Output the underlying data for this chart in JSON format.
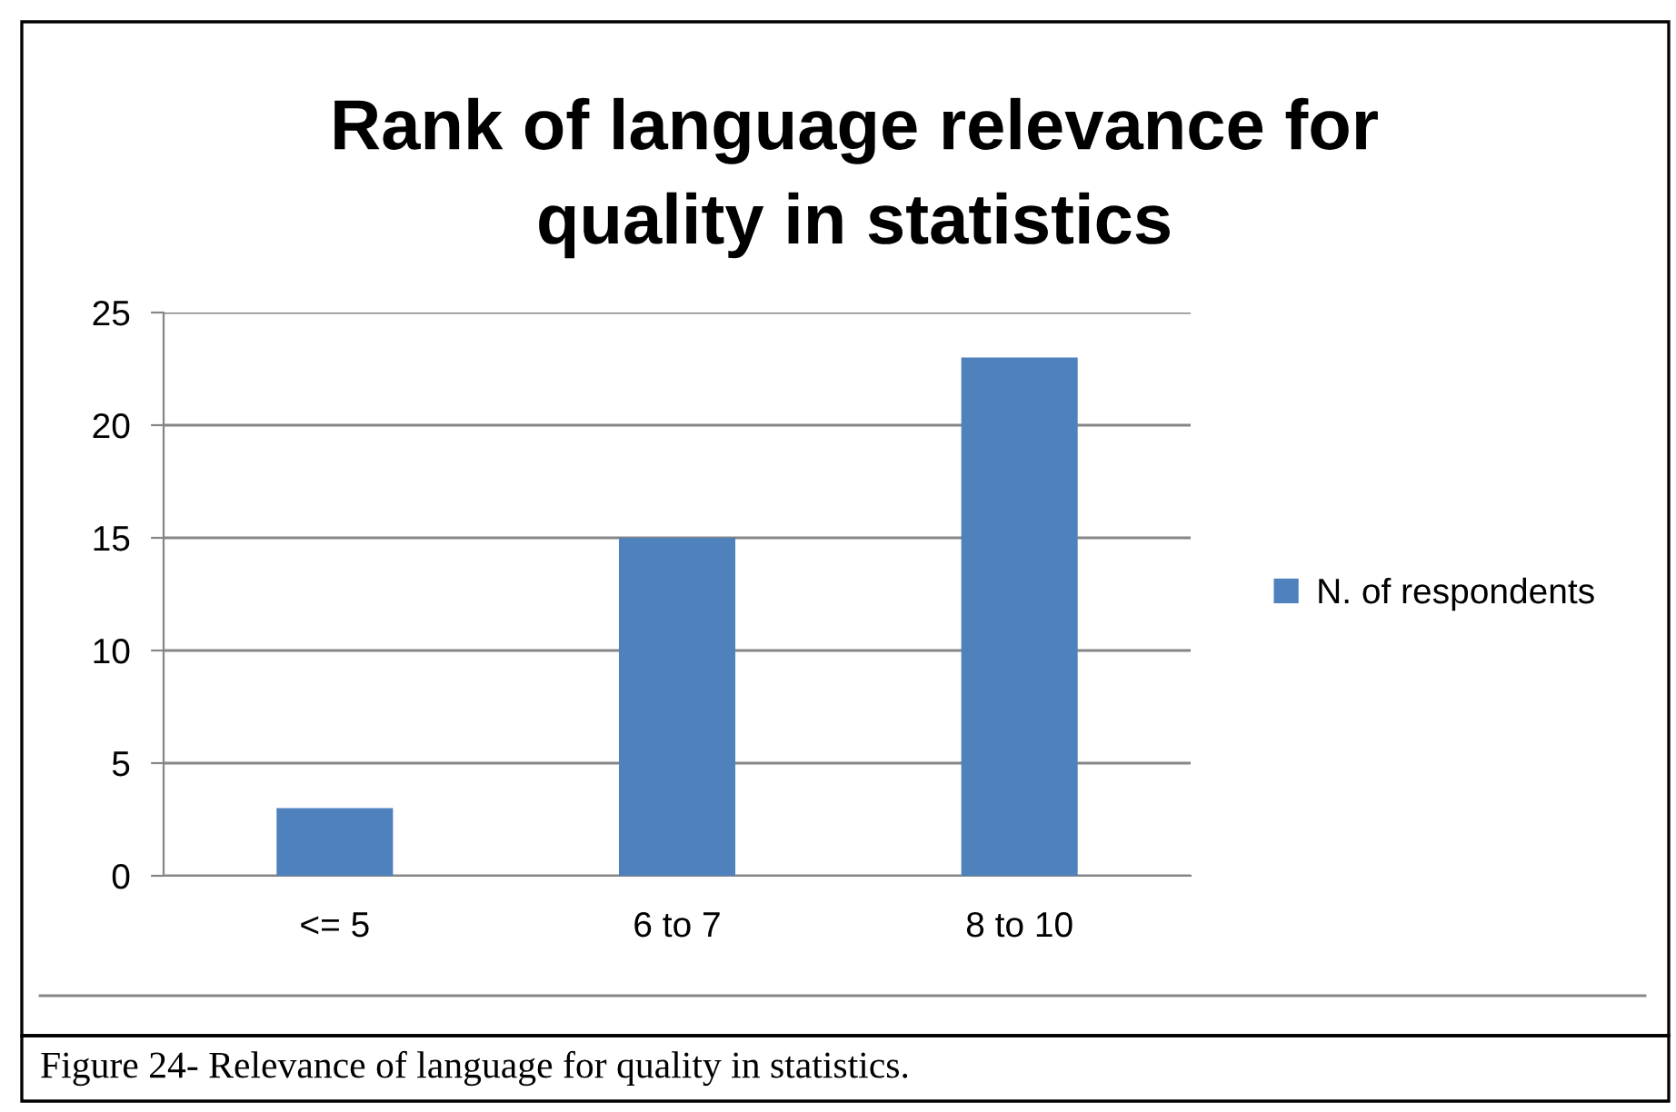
{
  "chart_data": {
    "type": "bar",
    "title": "Rank of language relevance for\nquality in statistics",
    "categories": [
      "<= 5",
      "6 to 7",
      "8 to 10"
    ],
    "series": [
      {
        "name": "N. of respondents",
        "color": "#4f81bd",
        "values": [
          3,
          15,
          23
        ]
      }
    ],
    "ylim": [
      0,
      25
    ],
    "yticks": [
      0,
      5,
      10,
      15,
      20,
      25
    ],
    "grid": "y",
    "legend": "right",
    "annotations": [
      "Figure 24- Relevance of language for quality in statistics."
    ]
  }
}
